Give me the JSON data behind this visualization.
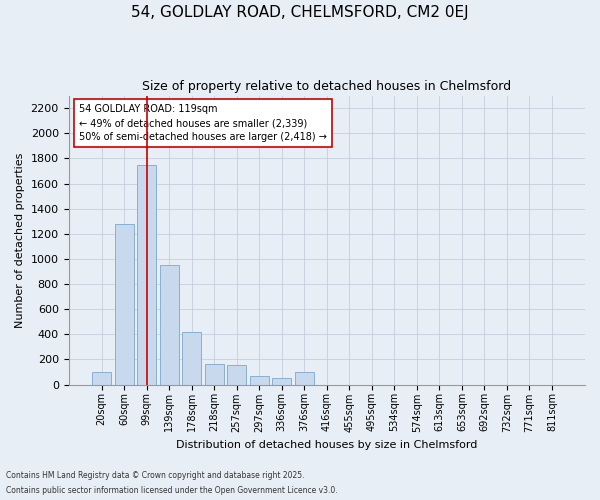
{
  "title_line1": "54, GOLDLAY ROAD, CHELMSFORD, CM2 0EJ",
  "title_line2": "Size of property relative to detached houses in Chelmsford",
  "xlabel": "Distribution of detached houses by size in Chelmsford",
  "ylabel": "Number of detached properties",
  "categories": [
    "20sqm",
    "60sqm",
    "99sqm",
    "139sqm",
    "178sqm",
    "218sqm",
    "257sqm",
    "297sqm",
    "336sqm",
    "376sqm",
    "416sqm",
    "455sqm",
    "495sqm",
    "534sqm",
    "574sqm",
    "613sqm",
    "653sqm",
    "692sqm",
    "732sqm",
    "771sqm",
    "811sqm"
  ],
  "values": [
    100,
    1280,
    1750,
    950,
    420,
    160,
    155,
    65,
    50,
    100,
    0,
    0,
    0,
    0,
    0,
    0,
    0,
    0,
    0,
    0,
    0
  ],
  "bar_color": "#c9d9ed",
  "bar_edge_color": "#7aa8cc",
  "vline_x": 2,
  "vline_color": "#cc0000",
  "annotation_text": "54 GOLDLAY ROAD: 119sqm\n← 49% of detached houses are smaller (2,339)\n50% of semi-detached houses are larger (2,418) →",
  "annotation_box_color": "#ffffff",
  "annotation_box_edge": "#cc0000",
  "ylim": [
    0,
    2300
  ],
  "yticks": [
    0,
    200,
    400,
    600,
    800,
    1000,
    1200,
    1400,
    1600,
    1800,
    2000,
    2200
  ],
  "footer_line1": "Contains HM Land Registry data © Crown copyright and database right 2025.",
  "footer_line2": "Contains public sector information licensed under the Open Government Licence v3.0.",
  "bg_color": "#e8eef5",
  "plot_bg_color": "#e8eef5",
  "title1_fontsize": 11,
  "title2_fontsize": 9,
  "ylabel_fontsize": 8,
  "xlabel_fontsize": 8,
  "ytick_fontsize": 8,
  "xtick_fontsize": 7
}
